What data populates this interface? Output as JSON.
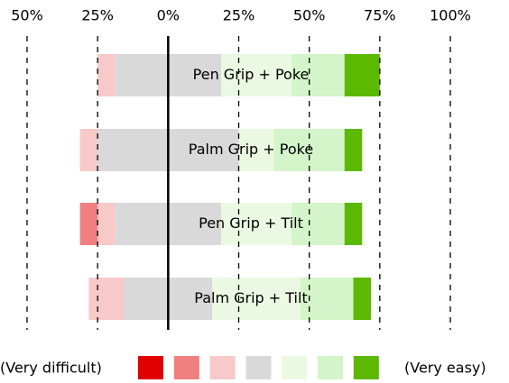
{
  "chart_data": {
    "type": "diverging_bar",
    "categories": [
      "Pen Grip + Poke",
      "Palm Grip + Poke",
      "Pen Grip + Tilt",
      "Palm Grip + Tilt"
    ],
    "series": [
      {
        "color": "#e00000",
        "values": [
          0,
          0,
          0,
          0
        ]
      },
      {
        "color": "#f08080",
        "values": [
          0,
          0,
          6.25,
          0
        ]
      },
      {
        "color": "#f7c9c9",
        "values": [
          6.25,
          6.25,
          6.25,
          12.5
        ]
      },
      {
        "color": "#d9d9d9",
        "values": [
          37.5,
          50,
          37.5,
          31.25
        ]
      },
      {
        "color": "#ebf9e3",
        "values": [
          25,
          12.5,
          25,
          31.25
        ]
      },
      {
        "color": "#d3f5c9",
        "values": [
          18.75,
          25,
          18.75,
          18.75
        ]
      },
      {
        "color": "#5cb800",
        "values": [
          12.5,
          6.25,
          6.25,
          6.25
        ]
      }
    ],
    "xlim": [
      -50,
      100
    ],
    "xticks": [
      {
        "value": -50,
        "label": "50%"
      },
      {
        "value": -25,
        "label": "25%"
      },
      {
        "value": 0,
        "label": "0%"
      },
      {
        "value": 25,
        "label": "25%"
      },
      {
        "value": 50,
        "label": "50%"
      },
      {
        "value": 75,
        "label": "75%"
      },
      {
        "value": 100,
        "label": "100%"
      }
    ],
    "legend": {
      "low": "(Very difficult)",
      "high": "(Very easy)"
    }
  }
}
